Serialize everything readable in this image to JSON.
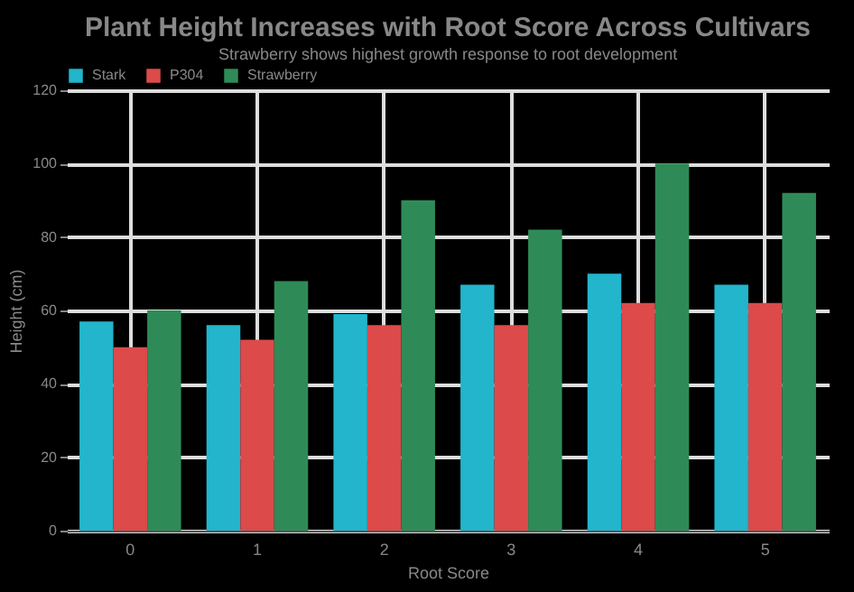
{
  "chart_data": {
    "type": "bar",
    "title": "Plant Height Increases with Root Score Across Cultivars",
    "subtitle": "Strawberry shows highest growth response to root development",
    "xlabel": "Root Score",
    "ylabel": "Height (cm)",
    "categories": [
      "0",
      "1",
      "2",
      "3",
      "4",
      "5"
    ],
    "series": [
      {
        "name": "Stark",
        "color": "#22b5cc",
        "values": [
          57,
          56,
          59,
          67,
          70,
          67
        ]
      },
      {
        "name": "P304",
        "color": "#dc4a4a",
        "values": [
          50,
          52,
          56,
          56,
          62,
          62
        ]
      },
      {
        "name": "Strawberry",
        "color": "#2e8b57",
        "values": [
          60,
          68,
          90,
          82,
          100,
          92
        ]
      }
    ],
    "ylim": [
      0,
      120
    ],
    "yticks": [
      0,
      20,
      40,
      60,
      80,
      100,
      120
    ],
    "grid": true,
    "legend": "top"
  }
}
